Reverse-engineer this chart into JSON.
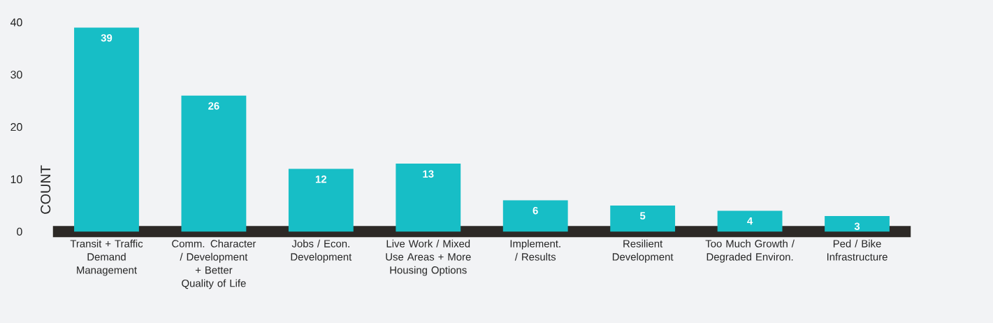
{
  "chart_data": {
    "type": "bar",
    "ylabel": "COUNT",
    "categories": [
      "Transit + Traffic Demand Management",
      "Comm. Character / Development + Better Quality of Life",
      "Jobs / Econ. Development",
      "Live Work / Mixed Use Areas + More Housing Options",
      "Implement. / Results",
      "Resilient Development",
      "Too Much Growth / Degraded Environ.",
      "Ped / Bike Infrastructure"
    ],
    "values": [
      39,
      26,
      12,
      13,
      6,
      5,
      4,
      3
    ],
    "color": "#17bec6",
    "ylim": [
      0,
      40
    ],
    "yticks": [
      0,
      10,
      20,
      30,
      40
    ],
    "data_labels": true
  }
}
